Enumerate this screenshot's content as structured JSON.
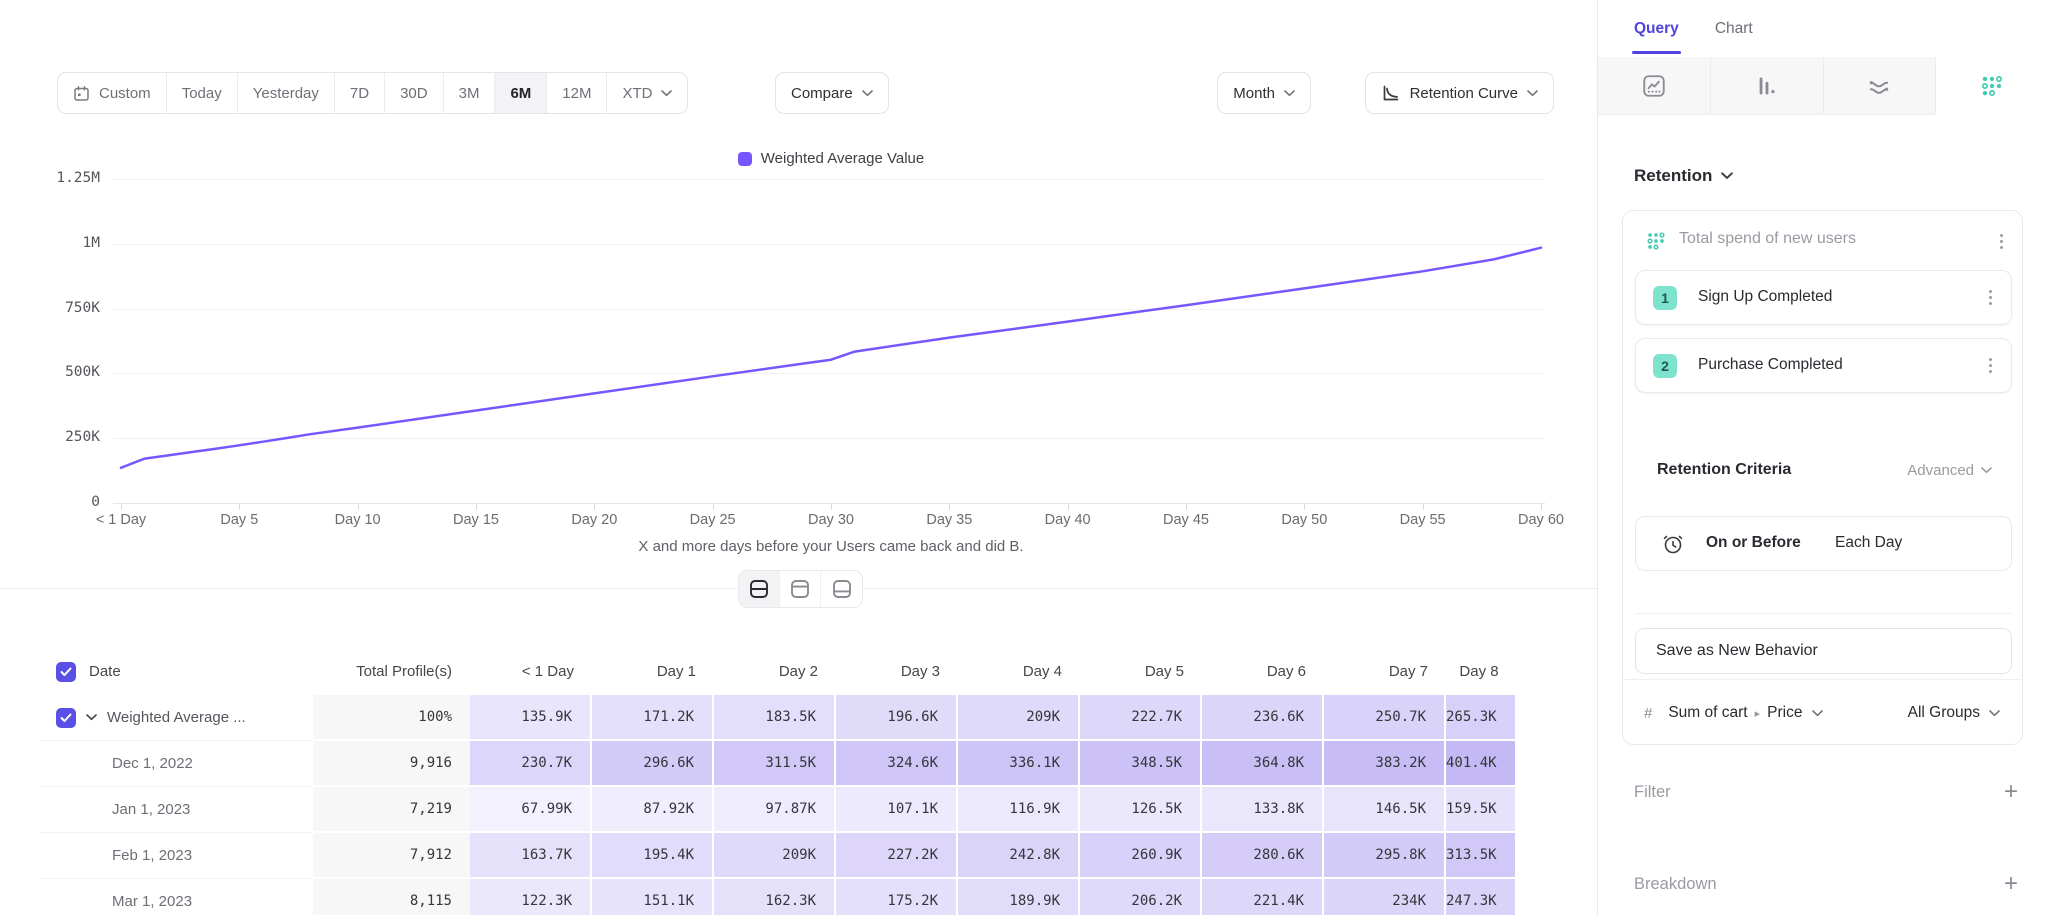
{
  "toolbar": {
    "ranges": [
      "Custom",
      "Today",
      "Yesterday",
      "7D",
      "30D",
      "3M",
      "6M",
      "12M",
      "XTD"
    ],
    "selected_range": "6M",
    "compare": "Compare",
    "granularity": "Month",
    "view": "Retention Curve"
  },
  "chart_data": {
    "type": "line",
    "legend": "Weighted Average Value",
    "line_color": "#7856FF",
    "xlabel": "X and more days before your Users came back and did B.",
    "x_ticks": [
      "< 1 Day",
      "Day 5",
      "Day 10",
      "Day 15",
      "Day 20",
      "Day 25",
      "Day 30",
      "Day 35",
      "Day 40",
      "Day 45",
      "Day 50",
      "Day 55",
      "Day 60"
    ],
    "x_tick_days": [
      0,
      5,
      10,
      15,
      20,
      25,
      30,
      35,
      40,
      45,
      50,
      55,
      60
    ],
    "y_ticks": [
      "0",
      "250K",
      "500K",
      "750K",
      "1M",
      "1.25M"
    ],
    "y_tick_values_k": [
      0,
      250,
      500,
      750,
      1000,
      1250
    ],
    "ylim_k": [
      0,
      1250
    ],
    "xlim_days": [
      0,
      60
    ],
    "series": [
      {
        "name": "Weighted Average Value",
        "points_day_valueK": [
          [
            0,
            135.9
          ],
          [
            1,
            171.2
          ],
          [
            2,
            183.5
          ],
          [
            3,
            196.6
          ],
          [
            4,
            209
          ],
          [
            5,
            222.7
          ],
          [
            6,
            236.6
          ],
          [
            7,
            250.7
          ],
          [
            8,
            265.3
          ],
          [
            10,
            291
          ],
          [
            15,
            357
          ],
          [
            20,
            423
          ],
          [
            25,
            489
          ],
          [
            29,
            540
          ],
          [
            30,
            553
          ],
          [
            31,
            584
          ],
          [
            35,
            638
          ],
          [
            40,
            700
          ],
          [
            45,
            763
          ],
          [
            50,
            828
          ],
          [
            55,
            894
          ],
          [
            58,
            940
          ],
          [
            60,
            985
          ]
        ]
      }
    ]
  },
  "table": {
    "columns": [
      "Date",
      "Total Profile(s)",
      "< 1 Day",
      "Day 1",
      "Day 2",
      "Day 3",
      "Day 4",
      "Day 5",
      "Day 6",
      "Day 7",
      "Day 8"
    ],
    "rows": [
      {
        "date": "Weighted Average ...",
        "profiles": "100%",
        "expandable": true,
        "values": [
          "135.9K",
          "171.2K",
          "183.5K",
          "196.6K",
          "209K",
          "222.7K",
          "236.6K",
          "250.7K",
          "265.3K"
        ],
        "cutoff_valueK": 280
      },
      {
        "date": "Dec 1, 2022",
        "profiles": "9,916",
        "values": [
          "230.7K",
          "296.6K",
          "311.5K",
          "324.6K",
          "336.1K",
          "348.5K",
          "364.8K",
          "383.2K",
          "401.4K"
        ],
        "cutoff_valueK": 420
      },
      {
        "date": "Jan 1, 2023",
        "profiles": "7,219",
        "values": [
          "67.99K",
          "87.92K",
          "97.87K",
          "107.1K",
          "116.9K",
          "126.5K",
          "133.8K",
          "146.5K",
          "159.5K"
        ],
        "cutoff_valueK": 172
      },
      {
        "date": "Feb 1, 2023",
        "profiles": "7,912",
        "values": [
          "163.7K",
          "195.4K",
          "209K",
          "227.2K",
          "242.8K",
          "260.9K",
          "280.6K",
          "295.8K",
          "313.5K"
        ],
        "cutoff_valueK": 330
      },
      {
        "date": "Mar 1, 2023",
        "profiles": "8,115",
        "values": [
          "122.3K",
          "151.1K",
          "162.3K",
          "175.2K",
          "189.9K",
          "206.2K",
          "221.4K",
          "234K",
          "247.3K"
        ],
        "cutoff_valueK": 260
      }
    ]
  },
  "panel": {
    "tabs": [
      "Query",
      "Chart"
    ],
    "active_tab": "Query",
    "section": "Retention",
    "behavior_title": "Total spend of new users",
    "steps": [
      {
        "index": "1",
        "label": "Sign Up Completed"
      },
      {
        "index": "2",
        "label": "Purchase Completed"
      }
    ],
    "criteria_label": "Retention Criteria",
    "criteria_mode": "Advanced",
    "criteria_operator": "On or Before",
    "criteria_value": "Each Day",
    "save_button": "Save as New Behavior",
    "metric_prefix": "#",
    "metric_label": "Sum of cart",
    "metric_property": "Price",
    "metric_groups": "All Groups",
    "filter_label": "Filter",
    "breakdown_label": "Breakdown"
  },
  "colors": {
    "accent_purple": "#7856FF",
    "checkbox_purple": "#5A50E6",
    "tab_purple": "#4F44E0",
    "teal": "#45CBB3",
    "teal_badge_bg": "#7DE2CE",
    "heatmap_low": "#F4F2FE",
    "heatmap_high": "#C3B8F5",
    "profiles_bg": "#F7F7F8"
  }
}
